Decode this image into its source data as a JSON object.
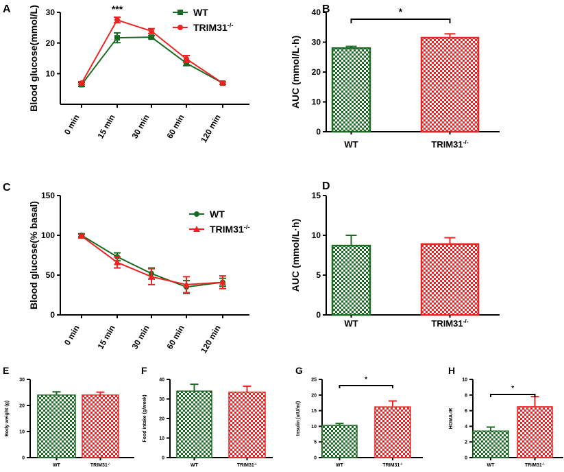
{
  "colors": {
    "wt": "#1a6b22",
    "ko": "#ee2222",
    "axis": "#000000"
  },
  "chart_data": [
    {
      "panel": "A",
      "type": "line",
      "title": "",
      "xlabel": "",
      "ylabel": "Blood glucose(mmol/L)",
      "categories": [
        "0 min",
        "15 min",
        "30 min",
        "60 min",
        "120 min"
      ],
      "ylim": [
        0,
        30
      ],
      "yticks": [
        "10",
        "20",
        "30"
      ],
      "ytick_values": [
        10,
        20,
        30
      ],
      "series": [
        {
          "name": "WT",
          "key": "wt",
          "marker": "square",
          "values": [
            6.4,
            21.7,
            21.9,
            13.4,
            6.9
          ],
          "errors": [
            0.6,
            1.6,
            0.5,
            0.8,
            0.4
          ]
        },
        {
          "name": "TRIM31",
          "sup": "-/-",
          "key": "ko",
          "marker": "circle",
          "values": [
            6.9,
            27.5,
            23.9,
            14.8,
            6.9
          ],
          "errors": [
            0.5,
            0.9,
            0.8,
            1.1,
            0.4
          ]
        }
      ],
      "annotation": {
        "text": "***",
        "category_index": 1
      },
      "legend": "top-right"
    },
    {
      "panel": "B",
      "type": "bar",
      "xlabel": "",
      "ylabel": "AUC (mmol/L·h)",
      "categories": [
        "WT",
        "TRIM31"
      ],
      "category_sup": [
        "",
        "-/-"
      ],
      "ylim": [
        0,
        40
      ],
      "yticks": [
        "0",
        "10",
        "20",
        "30",
        "40"
      ],
      "ytick_values": [
        0,
        10,
        20,
        30,
        40
      ],
      "values": [
        28.0,
        31.5
      ],
      "errors": [
        0.6,
        1.3
      ],
      "keys": [
        "wt",
        "ko"
      ],
      "significance": "*"
    },
    {
      "panel": "C",
      "type": "line",
      "xlabel": "",
      "ylabel": "Blood glucose(% basal)",
      "categories": [
        "0 min",
        "15 min",
        "30 min",
        "60 min",
        "120 min"
      ],
      "ylim": [
        0,
        150
      ],
      "yticks": [
        "0",
        "50",
        "100",
        "150"
      ],
      "ytick_values": [
        0,
        50,
        100,
        150
      ],
      "series": [
        {
          "name": "WT",
          "key": "wt",
          "marker": "circle",
          "values": [
            100,
            73,
            52,
            35,
            41
          ],
          "errors": [
            2,
            5,
            7,
            8,
            5
          ]
        },
        {
          "name": "TRIM31",
          "sup": "-/-",
          "key": "ko",
          "marker": "triangle",
          "values": [
            99,
            66,
            48,
            38,
            41
          ],
          "errors": [
            2,
            7,
            10,
            10,
            8
          ]
        }
      ],
      "legend": "right"
    },
    {
      "panel": "D",
      "type": "bar",
      "xlabel": "",
      "ylabel": "AUC (mmol/L·h)",
      "categories": [
        "WT",
        "TRIM31"
      ],
      "category_sup": [
        "",
        "-/-"
      ],
      "ylim": [
        0,
        15
      ],
      "yticks": [
        "0",
        "5",
        "10",
        "15"
      ],
      "ytick_values": [
        0,
        5,
        10,
        15
      ],
      "values": [
        8.7,
        8.9
      ],
      "errors": [
        1.3,
        0.8
      ],
      "keys": [
        "wt",
        "ko"
      ]
    },
    {
      "panel": "E",
      "type": "bar",
      "xlabel": "",
      "ylabel": "Body weight (g)",
      "categories": [
        "WT",
        "TRIM31"
      ],
      "category_sup": [
        "",
        "-/-"
      ],
      "ylim": [
        0,
        30
      ],
      "yticks": [
        "0",
        "10",
        "20",
        "30"
      ],
      "ytick_values": [
        0,
        10,
        20,
        30
      ],
      "values": [
        24.0,
        24.0
      ],
      "errors": [
        1.2,
        1.1
      ],
      "keys": [
        "wt",
        "ko"
      ]
    },
    {
      "panel": "F",
      "type": "bar",
      "xlabel": "",
      "ylabel": "Food intake (g/week)",
      "categories": [
        "WT",
        "TRIM31"
      ],
      "category_sup": [
        "",
        "-/-"
      ],
      "ylim": [
        0,
        40
      ],
      "yticks": [
        "0",
        "10",
        "20",
        "30",
        "40"
      ],
      "ytick_values": [
        0,
        10,
        20,
        30,
        40
      ],
      "values": [
        34.0,
        33.5
      ],
      "errors": [
        3.5,
        3.0
      ],
      "keys": [
        "wt",
        "ko"
      ]
    },
    {
      "panel": "G",
      "type": "bar",
      "xlabel": "",
      "ylabel": "Insulin (uIU/ml)",
      "categories": [
        "WT",
        "TRIM31"
      ],
      "category_sup": [
        "",
        "-/-"
      ],
      "ylim": [
        0,
        25
      ],
      "yticks": [
        "0",
        "5",
        "10",
        "15",
        "20",
        "25"
      ],
      "ytick_values": [
        0,
        5,
        10,
        15,
        20,
        25
      ],
      "values": [
        10.3,
        16.2
      ],
      "errors": [
        0.6,
        1.9
      ],
      "keys": [
        "wt",
        "ko"
      ],
      "significance": "*"
    },
    {
      "panel": "H",
      "type": "bar",
      "xlabel": "",
      "ylabel": "HOMA-IR",
      "categories": [
        "WT",
        "TRIM31"
      ],
      "category_sup": [
        "",
        "-/-"
      ],
      "ylim": [
        0,
        10
      ],
      "yticks": [
        "0",
        "2",
        "4",
        "6",
        "8",
        "10"
      ],
      "ytick_values": [
        0,
        2,
        4,
        6,
        8,
        10
      ],
      "values": [
        3.4,
        6.5
      ],
      "errors": [
        0.5,
        1.3
      ],
      "keys": [
        "wt",
        "ko"
      ],
      "significance": "*"
    }
  ]
}
